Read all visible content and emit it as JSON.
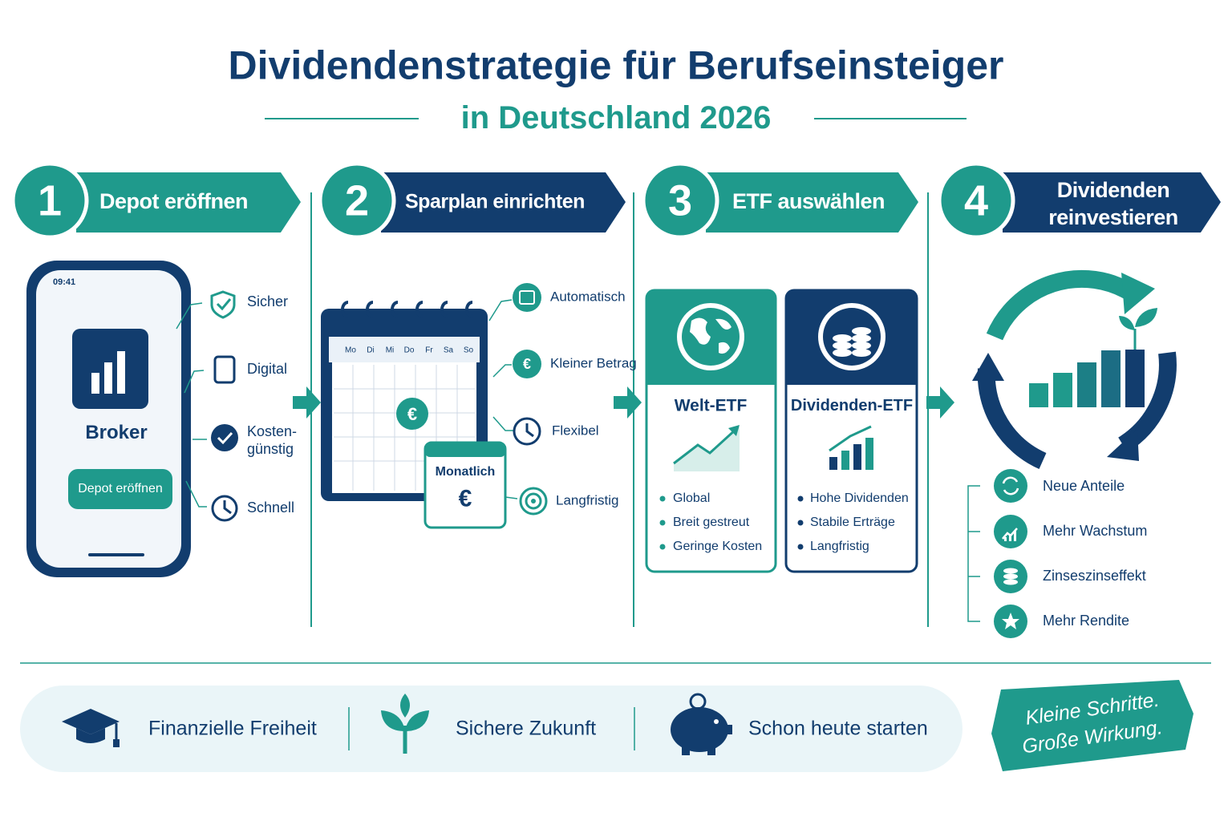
{
  "header": {
    "title": "Dividendenstrategie für Berufseinsteiger",
    "subtitle": "in Deutschland 2026"
  },
  "steps": [
    {
      "number": 1,
      "label": [
        "Depot eröffnen"
      ]
    },
    {
      "number": 2,
      "label": [
        "Sparplan einrichten"
      ]
    },
    {
      "number": 3,
      "label": [
        "ETF auswählen"
      ]
    },
    {
      "number": 4,
      "label": [
        "Dividenden",
        "reinvestieren"
      ]
    }
  ],
  "phone": {
    "time": "09:41",
    "app": "Broker",
    "button": "Depot eröffnen",
    "features": [
      [
        "Sicher"
      ],
      [
        "Digital"
      ],
      [
        "Kosten-",
        "günstig"
      ],
      [
        "Schnell"
      ]
    ]
  },
  "calendar": {
    "weekdays": [
      "Mo",
      "Di",
      "Mi",
      "Do",
      "Fr",
      "Sa",
      "So"
    ],
    "symbol": "€",
    "card": "Monatlich",
    "features": [
      "Automatisch",
      "Kleiner Betrag",
      "Flexibel",
      "Langfristig"
    ]
  },
  "etfs": [
    {
      "name": "Welt-ETF",
      "points": [
        "Global",
        "Breit gestreut",
        "Geringe Kosten"
      ]
    },
    {
      "name": "Dividenden-ETF",
      "points": [
        "Hohe Dividenden",
        "Stabile Erträge",
        "Langfristig"
      ]
    }
  ],
  "reinvest": {
    "benefits": [
      "Neue Anteile",
      "Mehr Wachstum",
      "Zinseszinseffekt",
      "Mehr Rendite"
    ]
  },
  "footer": {
    "items": [
      "Finanzielle Freiheit",
      "Sichere Zukunft",
      "Schon heute starten"
    ],
    "slogan": [
      "Kleine Schritte.",
      "Große Wirkung."
    ]
  }
}
